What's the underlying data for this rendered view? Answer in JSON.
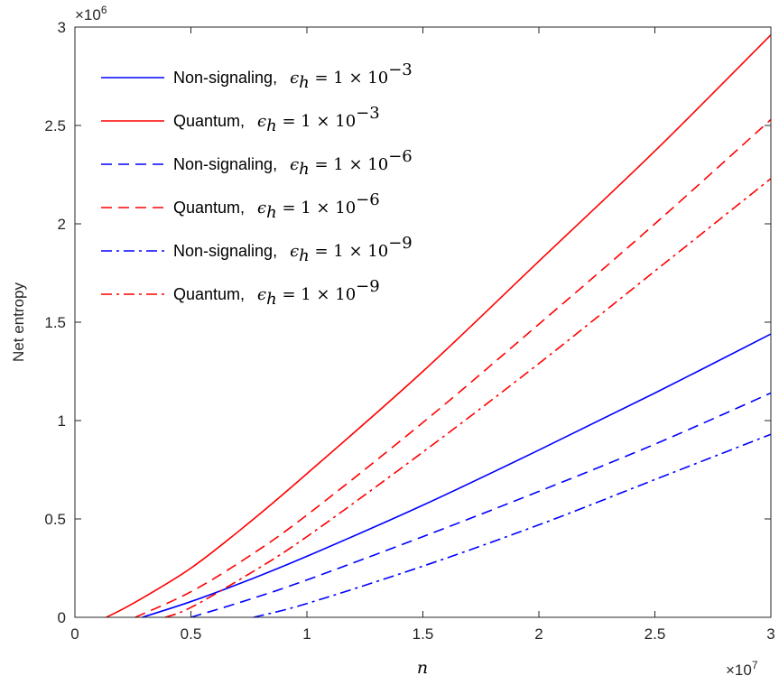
{
  "chart_data": {
    "type": "line",
    "xlabel": "n",
    "ylabel": "Net entropy",
    "x_exponent_label": "×10",
    "x_exponent": "7",
    "y_exponent_label": "×10",
    "y_exponent": "6",
    "xlim": [
      0,
      3
    ],
    "ylim": [
      0,
      3
    ],
    "x_ticks": [
      0,
      0.5,
      1,
      1.5,
      2,
      2.5,
      3
    ],
    "y_ticks": [
      0,
      0.5,
      1,
      1.5,
      2,
      2.5,
      3
    ],
    "x_tick_labels": [
      "0",
      "0.5",
      "1",
      "1.5",
      "2",
      "2.5",
      "3"
    ],
    "y_tick_labels": [
      "0",
      "0.5",
      "1",
      "1.5",
      "2",
      "2.5",
      "3"
    ],
    "legend_position": "top-left",
    "legend_math": "ϵ",
    "legend_math_sub": "h",
    "legend_math_rest": " = 1 × 10",
    "series": [
      {
        "name": "Non-signaling,",
        "exponent": "−3",
        "color": "#0000ff",
        "dash": "solid",
        "x": [
          0.29,
          0.5,
          0.75,
          1.0,
          1.5,
          2.0,
          2.5,
          3.0
        ],
        "y": [
          0.0,
          0.08,
          0.19,
          0.31,
          0.57,
          0.85,
          1.14,
          1.44
        ]
      },
      {
        "name": "Quantum,",
        "exponent": "−3",
        "color": "#ff0000",
        "dash": "solid",
        "x": [
          0.135,
          0.25,
          0.5,
          0.75,
          1.0,
          1.5,
          2.0,
          2.5,
          3.0
        ],
        "y": [
          0.0,
          0.07,
          0.25,
          0.48,
          0.73,
          1.25,
          1.81,
          2.37,
          2.96
        ]
      },
      {
        "name": "Non-signaling,",
        "exponent": "−6",
        "color": "#0000ff",
        "dash": "dashed",
        "x": [
          0.5,
          0.75,
          1.0,
          1.5,
          2.0,
          2.5,
          3.0
        ],
        "y": [
          0.0,
          0.09,
          0.19,
          0.41,
          0.64,
          0.88,
          1.14
        ]
      },
      {
        "name": "Quantum,",
        "exponent": "−6",
        "color": "#ff0000",
        "dash": "dashed",
        "x": [
          0.26,
          0.5,
          0.75,
          1.0,
          1.5,
          2.0,
          2.5,
          3.0
        ],
        "y": [
          0.0,
          0.13,
          0.31,
          0.52,
          0.99,
          1.49,
          2.0,
          2.53
        ]
      },
      {
        "name": "Non-signaling,",
        "exponent": "−9",
        "color": "#0000ff",
        "dash": "dashdot",
        "x": [
          0.77,
          1.0,
          1.5,
          2.0,
          2.5,
          3.0
        ],
        "y": [
          0.0,
          0.07,
          0.26,
          0.47,
          0.7,
          0.93
        ]
      },
      {
        "name": "Quantum,",
        "exponent": "−9",
        "color": "#ff0000",
        "dash": "dashdot",
        "x": [
          0.39,
          0.5,
          0.75,
          1.0,
          1.5,
          2.0,
          2.5,
          3.0
        ],
        "y": [
          0.0,
          0.05,
          0.22,
          0.41,
          0.84,
          1.29,
          1.76,
          2.23
        ]
      }
    ]
  }
}
